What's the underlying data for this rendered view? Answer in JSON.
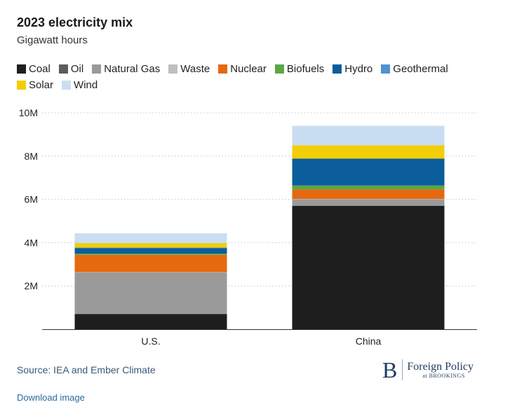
{
  "colors": {
    "Coal": "#1e1e1e",
    "Oil": "#5c5c5c",
    "Natural Gas": "#9a9a9a",
    "Waste": "#bfbfbf",
    "Nuclear": "#e5690f",
    "Biofuels": "#5aa845",
    "Hydro": "#0b5d9b",
    "Geothermal": "#4d93d1",
    "Solar": "#f2cd0a",
    "Wind": "#c9def2"
  },
  "chart_data": {
    "type": "bar",
    "stacked": true,
    "title": "2023 electricity mix",
    "subtitle": "Gigawatt hours",
    "xlabel": "",
    "ylabel": "",
    "categories": [
      "U.S.",
      "China"
    ],
    "ylim": [
      0,
      10000000
    ],
    "yticks": [
      2000000,
      4000000,
      6000000,
      8000000,
      10000000
    ],
    "ytick_labels": [
      "2M",
      "4M",
      "6M",
      "8M",
      "10M"
    ],
    "grid": true,
    "legend_position": "top-left",
    "series": [
      {
        "name": "Coal",
        "values": [
          700000,
          5700000
        ]
      },
      {
        "name": "Oil",
        "values": [
          20000,
          10000
        ]
      },
      {
        "name": "Natural Gas",
        "values": [
          1900000,
          290000
        ]
      },
      {
        "name": "Waste",
        "values": [
          20000,
          20000
        ]
      },
      {
        "name": "Nuclear",
        "values": [
          800000,
          440000
        ]
      },
      {
        "name": "Biofuels",
        "values": [
          50000,
          180000
        ]
      },
      {
        "name": "Hydro",
        "values": [
          260000,
          1240000
        ]
      },
      {
        "name": "Geothermal",
        "values": [
          20000,
          0
        ]
      },
      {
        "name": "Solar",
        "values": [
          210000,
          620000
        ]
      },
      {
        "name": "Wind",
        "values": [
          450000,
          900000
        ]
      }
    ]
  },
  "footer": {
    "source": "Source: IEA and Ember Climate",
    "download": "Download image",
    "logo_letter": "B",
    "logo_main": "Foreign Policy",
    "logo_sub": "at BROOKINGS"
  }
}
